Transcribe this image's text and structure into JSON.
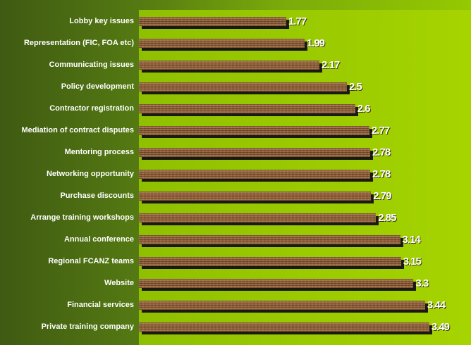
{
  "chart_data": {
    "type": "bar",
    "orientation": "horizontal",
    "categories": [
      "Lobby key issues",
      "Representation (FIC, FOA etc)",
      "Communicating issues",
      "Policy development",
      "Contractor registration",
      "Mediation of contract disputes",
      "Mentoring process",
      "Networking opportunity",
      "Purchase discounts",
      "Arrange training workshops",
      "Annual conference",
      "Regional FCANZ teams",
      "Website",
      "Financial services",
      "Private training company"
    ],
    "values": [
      1.77,
      1.99,
      2.17,
      2.5,
      2.6,
      2.77,
      2.78,
      2.78,
      2.79,
      2.85,
      3.14,
      3.15,
      3.3,
      3.44,
      3.49
    ],
    "value_labels": [
      "1.77",
      "1.99",
      "2.17",
      "2.5",
      "2.6",
      "2.77",
      "2.78",
      "2.78",
      "2.79",
      "2.85",
      "3.14",
      "3.15",
      "3.3",
      "3.44",
      "3.49"
    ],
    "title": "",
    "xlabel": "",
    "ylabel": "",
    "grid": false,
    "legend": "none",
    "colors": {
      "bar": "#9a6a44",
      "shadow": "#1b1a12",
      "plot_background": "#9ccc00",
      "outer_background": "#557a12",
      "label_text": "#ffffff"
    }
  }
}
